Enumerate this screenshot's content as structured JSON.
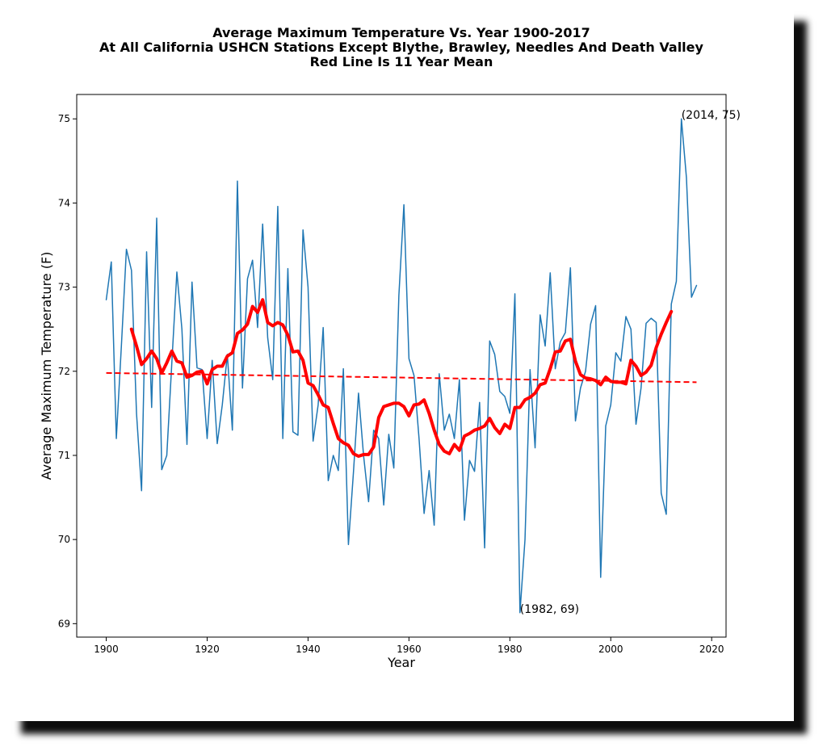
{
  "chart_data": {
    "type": "line",
    "title": [
      "Average Maximum Temperature Vs. Year 1900-2017",
      "At All California USHCN Stations Except Blythe, Brawley, Needles And Death Valley",
      "Red Line Is 11 Year Mean"
    ],
    "x_label": "Year",
    "y_label": "Average Maximum Temperature (F)",
    "xlim": [
      1894.15,
      2022.85
    ],
    "ylim": [
      68.84,
      75.29
    ],
    "xticks": [
      1900,
      1920,
      1940,
      1960,
      1980,
      2000,
      2020
    ],
    "yticks": [
      69,
      70,
      71,
      72,
      73,
      74,
      75
    ],
    "grid": false,
    "series": [
      {
        "color": "#1f77b4",
        "linewidth": 1.5,
        "dash": "solid",
        "x": [
          1900,
          1901,
          1902,
          1903,
          1904,
          1905,
          1906,
          1907,
          1908,
          1909,
          1910,
          1911,
          1912,
          1913,
          1914,
          1915,
          1916,
          1917,
          1918,
          1919,
          1920,
          1921,
          1922,
          1923,
          1924,
          1925,
          1926,
          1927,
          1928,
          1929,
          1930,
          1931,
          1932,
          1933,
          1934,
          1935,
          1936,
          1937,
          1938,
          1939,
          1940,
          1941,
          1942,
          1943,
          1944,
          1945,
          1946,
          1947,
          1948,
          1949,
          1950,
          1951,
          1952,
          1953,
          1954,
          1955,
          1956,
          1957,
          1958,
          1959,
          1960,
          1961,
          1962,
          1963,
          1964,
          1965,
          1966,
          1967,
          1968,
          1969,
          1970,
          1971,
          1972,
          1973,
          1974,
          1975,
          1976,
          1977,
          1978,
          1979,
          1980,
          1981,
          1982,
          1983,
          1984,
          1985,
          1986,
          1987,
          1988,
          1989,
          1990,
          1991,
          1992,
          1993,
          1994,
          1995,
          1996,
          1997,
          1998,
          1999,
          2000,
          2001,
          2002,
          2003,
          2004,
          2005,
          2006,
          2007,
          2008,
          2009,
          2010,
          2011,
          2012,
          2013,
          2014,
          2015,
          2016,
          2017
        ],
        "values": [
          72.85,
          73.3,
          71.2,
          72.3,
          73.45,
          73.2,
          71.5,
          70.58,
          73.42,
          71.57,
          73.82,
          70.83,
          71.0,
          72.1,
          73.18,
          72.5,
          71.13,
          73.06,
          72.04,
          72.02,
          71.2,
          72.13,
          71.14,
          71.6,
          72.2,
          71.3,
          74.26,
          71.8,
          73.1,
          73.32,
          72.52,
          73.75,
          72.4,
          71.9,
          73.96,
          71.2,
          73.22,
          71.28,
          71.24,
          73.68,
          73.0,
          71.17,
          71.6,
          72.52,
          70.7,
          71.0,
          70.82,
          72.03,
          69.94,
          70.8,
          71.74,
          71.0,
          70.45,
          71.3,
          71.2,
          70.41,
          71.25,
          70.85,
          72.9,
          73.98,
          72.15,
          71.95,
          71.2,
          70.31,
          70.82,
          70.17,
          71.97,
          71.3,
          71.49,
          71.2,
          71.9,
          70.23,
          70.94,
          70.81,
          71.63,
          69.9,
          72.36,
          72.2,
          71.76,
          71.7,
          71.5,
          72.92,
          69.13,
          70.0,
          72.02,
          71.09,
          72.67,
          72.3,
          73.17,
          72.03,
          72.35,
          72.46,
          73.23,
          71.41,
          71.8,
          72.0,
          72.56,
          72.78,
          69.55,
          71.35,
          71.6,
          72.22,
          72.12,
          72.65,
          72.5,
          71.37,
          71.8,
          72.57,
          72.63,
          72.58,
          70.55,
          70.3,
          72.8,
          73.07,
          75.0,
          74.3,
          72.88,
          73.02
        ]
      },
      {
        "color": "#ff0000",
        "linewidth": 4,
        "dash": "solid",
        "x": [
          1905,
          1906,
          1907,
          1908,
          1909,
          1910,
          1911,
          1912,
          1913,
          1914,
          1915,
          1916,
          1917,
          1918,
          1919,
          1920,
          1921,
          1922,
          1923,
          1924,
          1925,
          1926,
          1927,
          1928,
          1929,
          1930,
          1931,
          1932,
          1933,
          1934,
          1935,
          1936,
          1937,
          1938,
          1939,
          1940,
          1941,
          1942,
          1943,
          1944,
          1945,
          1946,
          1947,
          1948,
          1949,
          1950,
          1951,
          1952,
          1953,
          1954,
          1955,
          1956,
          1957,
          1958,
          1959,
          1960,
          1961,
          1962,
          1963,
          1964,
          1965,
          1966,
          1967,
          1968,
          1969,
          1970,
          1971,
          1972,
          1973,
          1974,
          1975,
          1976,
          1977,
          1978,
          1979,
          1980,
          1981,
          1982,
          1983,
          1984,
          1985,
          1986,
          1987,
          1988,
          1989,
          1990,
          1991,
          1992,
          1993,
          1994,
          1995,
          1996,
          1997,
          1998,
          1999,
          2000,
          2001,
          2002,
          2003,
          2004,
          2005,
          2006,
          2007,
          2008,
          2009,
          2010,
          2011,
          2012
        ],
        "values": [
          72.5,
          72.3,
          72.08,
          72.15,
          72.24,
          72.15,
          71.98,
          72.1,
          72.24,
          72.12,
          72.1,
          71.93,
          71.95,
          71.99,
          72.0,
          71.85,
          72.02,
          72.06,
          72.06,
          72.18,
          72.22,
          72.45,
          72.49,
          72.56,
          72.77,
          72.7,
          72.85,
          72.58,
          72.54,
          72.58,
          72.55,
          72.43,
          72.23,
          72.24,
          72.13,
          71.86,
          71.83,
          71.72,
          71.6,
          71.57,
          71.38,
          71.2,
          71.15,
          71.12,
          71.02,
          70.99,
          71.01,
          71.01,
          71.1,
          71.45,
          71.58,
          71.6,
          71.62,
          71.62,
          71.58,
          71.47,
          71.6,
          71.61,
          71.66,
          71.5,
          71.3,
          71.13,
          71.05,
          71.02,
          71.13,
          71.06,
          71.23,
          71.26,
          71.3,
          71.32,
          71.35,
          71.44,
          71.33,
          71.26,
          71.37,
          71.32,
          71.57,
          71.57,
          71.66,
          71.69,
          71.74,
          71.84,
          71.86,
          72.03,
          72.23,
          72.24,
          72.36,
          72.38,
          72.12,
          71.96,
          71.92,
          71.91,
          71.89,
          71.84,
          71.93,
          71.88,
          71.87,
          71.87,
          71.85,
          72.13,
          72.06,
          71.95,
          71.99,
          72.07,
          72.28,
          72.44,
          72.58,
          72.71
        ]
      },
      {
        "color": "#ff0000",
        "linewidth": 2,
        "dash": "dashed",
        "x": [
          1900,
          2017
        ],
        "values": [
          71.98,
          71.87
        ]
      }
    ],
    "annotations": [
      {
        "text": "(2014, 75)",
        "x": 2014,
        "y": 75
      },
      {
        "text": "(1982, 69)",
        "x": 1982,
        "y": 69.13
      }
    ]
  }
}
